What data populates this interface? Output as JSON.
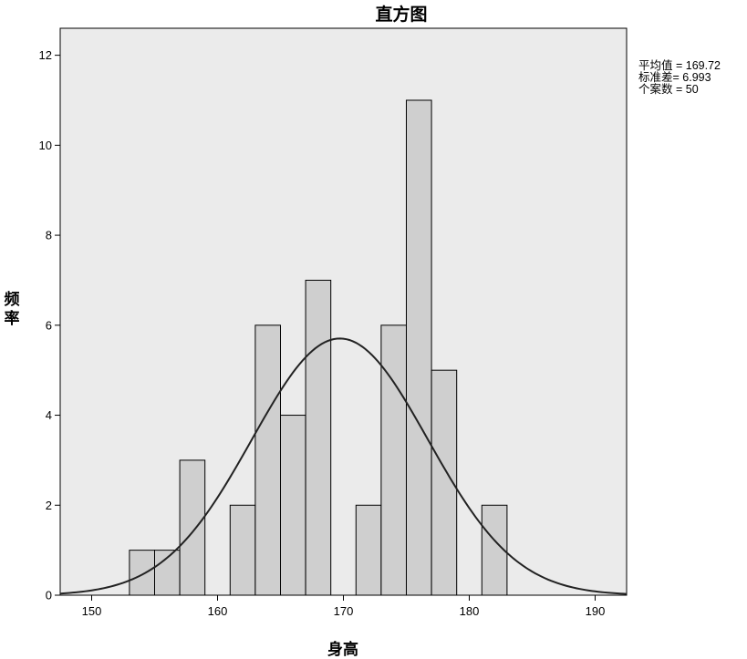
{
  "chart_data": {
    "type": "histogram",
    "title": "直方图",
    "xlabel": "身高",
    "ylabel": "频率",
    "xlim": [
      147.5,
      192.5
    ],
    "ylim": [
      0,
      12.6
    ],
    "xticks": [
      150,
      160,
      170,
      180,
      190
    ],
    "yticks": [
      0,
      2,
      4,
      6,
      8,
      10,
      12
    ],
    "bin_width": 2,
    "bins": [
      {
        "start": 153,
        "end": 155,
        "count": 1
      },
      {
        "start": 155,
        "end": 157,
        "count": 1
      },
      {
        "start": 157,
        "end": 159,
        "count": 3
      },
      {
        "start": 161,
        "end": 163,
        "count": 2
      },
      {
        "start": 163,
        "end": 165,
        "count": 6
      },
      {
        "start": 165,
        "end": 167,
        "count": 4
      },
      {
        "start": 167,
        "end": 169,
        "count": 7
      },
      {
        "start": 171,
        "end": 173,
        "count": 2
      },
      {
        "start": 173,
        "end": 175,
        "count": 6
      },
      {
        "start": 175,
        "end": 177,
        "count": 11
      },
      {
        "start": 177,
        "end": 179,
        "count": 5
      },
      {
        "start": 181,
        "end": 183,
        "count": 2
      }
    ],
    "normal_curve": {
      "mean": 169.72,
      "std": 6.993,
      "n": 50
    },
    "grid": false,
    "stats_text": [
      "平均值 = 169.72",
      "标准差= 6.993",
      "个案数 = 50"
    ],
    "colors": {
      "bar_fill": "#cfcfcf",
      "plot_bg": "#ebebeb",
      "curve": "#222222"
    }
  }
}
